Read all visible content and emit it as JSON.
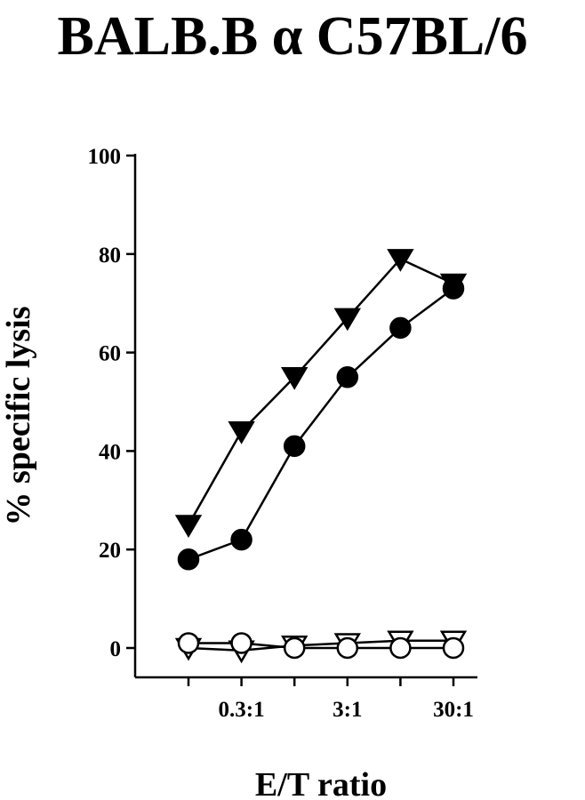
{
  "chart_data": {
    "type": "line",
    "title": "BALB.B α C57BL/6",
    "xlabel": "E/T ratio",
    "ylabel": "% specific lysis",
    "ylim": [
      0,
      100
    ],
    "yticks": [
      0,
      20,
      40,
      60,
      80,
      100
    ],
    "x_positions": [
      1,
      2,
      3,
      4,
      5,
      6
    ],
    "xtick_labels": [
      {
        "pos": 2,
        "label": "0.3:1"
      },
      {
        "pos": 4,
        "label": "3:1"
      },
      {
        "pos": 6,
        "label": "30:1"
      }
    ],
    "grid": false,
    "legend": "none",
    "series": [
      {
        "marker": "filled-triangle-down",
        "values": [
          25,
          44,
          55,
          67,
          79,
          74
        ]
      },
      {
        "marker": "filled-circle",
        "values": [
          18,
          22,
          41,
          55,
          65,
          73
        ]
      },
      {
        "marker": "open-triangle-down",
        "values": [
          0,
          -0.5,
          0.5,
          1,
          1.5,
          1.5
        ]
      },
      {
        "marker": "open-circle",
        "values": [
          1,
          1,
          0,
          0,
          0,
          0
        ]
      }
    ]
  }
}
